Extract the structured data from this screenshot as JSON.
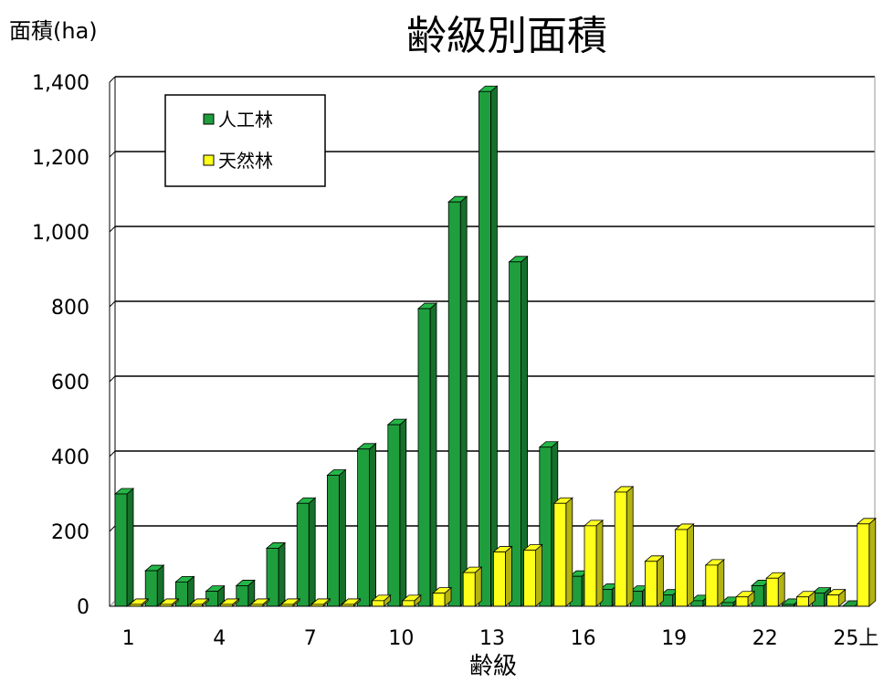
{
  "chart_data": {
    "type": "bar",
    "title": "齢級別面積",
    "ylabel": "面積(ha)",
    "xlabel": "齢級",
    "ylim": [
      0,
      1400
    ],
    "yticks": [
      0,
      200,
      400,
      600,
      800,
      1000,
      1200,
      1400
    ],
    "ytick_labels": [
      "0",
      "200",
      "400",
      "600",
      "800",
      "1,000",
      "1,200",
      "1,400"
    ],
    "categories": [
      "1",
      "2",
      "3",
      "4",
      "5",
      "6",
      "7",
      "8",
      "9",
      "10",
      "11",
      "12",
      "13",
      "14",
      "15",
      "16",
      "17",
      "18",
      "19",
      "20",
      "21",
      "22",
      "23",
      "24",
      "25上"
    ],
    "xtick_labels": [
      "1",
      "4",
      "7",
      "10",
      "13",
      "16",
      "19",
      "22",
      "25上"
    ],
    "grid": true,
    "legend_position": "top-left",
    "series": [
      {
        "name": "人工林",
        "color": "#1f9e3e",
        "values": [
          300,
          95,
          65,
          40,
          55,
          155,
          275,
          350,
          420,
          485,
          795,
          1080,
          1375,
          920,
          425,
          80,
          45,
          40,
          30,
          15,
          10,
          55,
          5,
          35,
          0
        ]
      },
      {
        "name": "天然林",
        "color": "#ffff1a",
        "values": [
          5,
          5,
          5,
          5,
          5,
          5,
          5,
          5,
          15,
          15,
          35,
          90,
          145,
          150,
          275,
          215,
          305,
          120,
          205,
          110,
          25,
          75,
          25,
          30,
          220
        ]
      }
    ]
  }
}
